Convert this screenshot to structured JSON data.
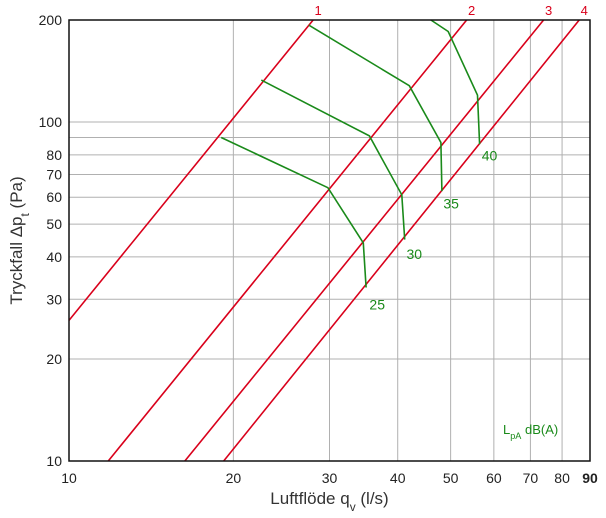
{
  "chart_data": {
    "type": "line",
    "x_scale": "log",
    "y_scale": "log",
    "xlim": [
      10,
      90
    ],
    "ylim": [
      10,
      200
    ],
    "grid": true,
    "xlabel": "Luftflöde q",
    "xlabel_sub": "v",
    "xlabel_unit": " (l/s)",
    "ylabel": "Tryckfall Δp",
    "ylabel_sub": "t",
    "ylabel_unit": " (Pa)",
    "x_gridlines": [
      10,
      20,
      30,
      40,
      50,
      60,
      70,
      80,
      90
    ],
    "x_ticks": [
      {
        "value": 10,
        "label": "10"
      },
      {
        "value": 20,
        "label": "20"
      },
      {
        "value": 30,
        "label": "30"
      },
      {
        "value": 40,
        "label": "40"
      },
      {
        "value": 50,
        "label": "50"
      },
      {
        "value": 60,
        "label": "60"
      },
      {
        "value": 70,
        "label": "70"
      },
      {
        "value": 80,
        "label": "80"
      },
      {
        "value": 90,
        "label": "90",
        "bold": true
      }
    ],
    "y_gridlines": [
      10,
      20,
      30,
      40,
      50,
      60,
      70,
      80,
      90,
      100,
      200
    ],
    "y_ticks": [
      {
        "value": 10,
        "label": "10"
      },
      {
        "value": 20,
        "label": "20"
      },
      {
        "value": 30,
        "label": "30"
      },
      {
        "value": 40,
        "label": "40"
      },
      {
        "value": 50,
        "label": "50"
      },
      {
        "value": 60,
        "label": "60"
      },
      {
        "value": 70,
        "label": "70"
      },
      {
        "value": 80,
        "label": "80"
      },
      {
        "value": 100,
        "label": "100"
      },
      {
        "value": 200,
        "label": "200"
      }
    ],
    "colors": {
      "position_lines": "#d9001b",
      "sound_lines": "#1a8a1a",
      "grid": "#b0b0b0",
      "frame": "#111111"
    },
    "position_lines": [
      {
        "label": "1",
        "points": [
          [
            10,
            26
          ],
          [
            28,
            200
          ]
        ]
      },
      {
        "label": "2",
        "points": [
          [
            11.8,
            10
          ],
          [
            53.5,
            200
          ]
        ]
      },
      {
        "label": "3",
        "points": [
          [
            16.3,
            10
          ],
          [
            74,
            200
          ]
        ]
      },
      {
        "label": "4",
        "points": [
          [
            19.2,
            10
          ],
          [
            86,
            200
          ]
        ]
      }
    ],
    "sound_lines": [
      {
        "label": "25",
        "points": [
          [
            19,
            90
          ],
          [
            29.8,
            64
          ],
          [
            34.6,
            44
          ],
          [
            35,
            32.5
          ]
        ]
      },
      {
        "label": "30",
        "points": [
          [
            22.5,
            133
          ],
          [
            35.5,
            91
          ],
          [
            40.7,
            61
          ],
          [
            41.2,
            45
          ]
        ]
      },
      {
        "label": "35",
        "points": [
          [
            27.5,
            193
          ],
          [
            42,
            128
          ],
          [
            48,
            87
          ],
          [
            48.2,
            62.5
          ]
        ]
      },
      {
        "label": "40",
        "points": [
          [
            46,
            200
          ],
          [
            49.5,
            185
          ],
          [
            56,
            120
          ],
          [
            56.5,
            86
          ]
        ]
      }
    ],
    "sound_label_positions": [
      [
        35.5,
        28
      ],
      [
        41.5,
        39.5
      ],
      [
        48.5,
        55.5
      ],
      [
        57,
        77
      ]
    ],
    "legend_label": "L",
    "legend_sub": "pA",
    "legend_unit": " dB(A)",
    "legend_position": "bottom-right"
  }
}
